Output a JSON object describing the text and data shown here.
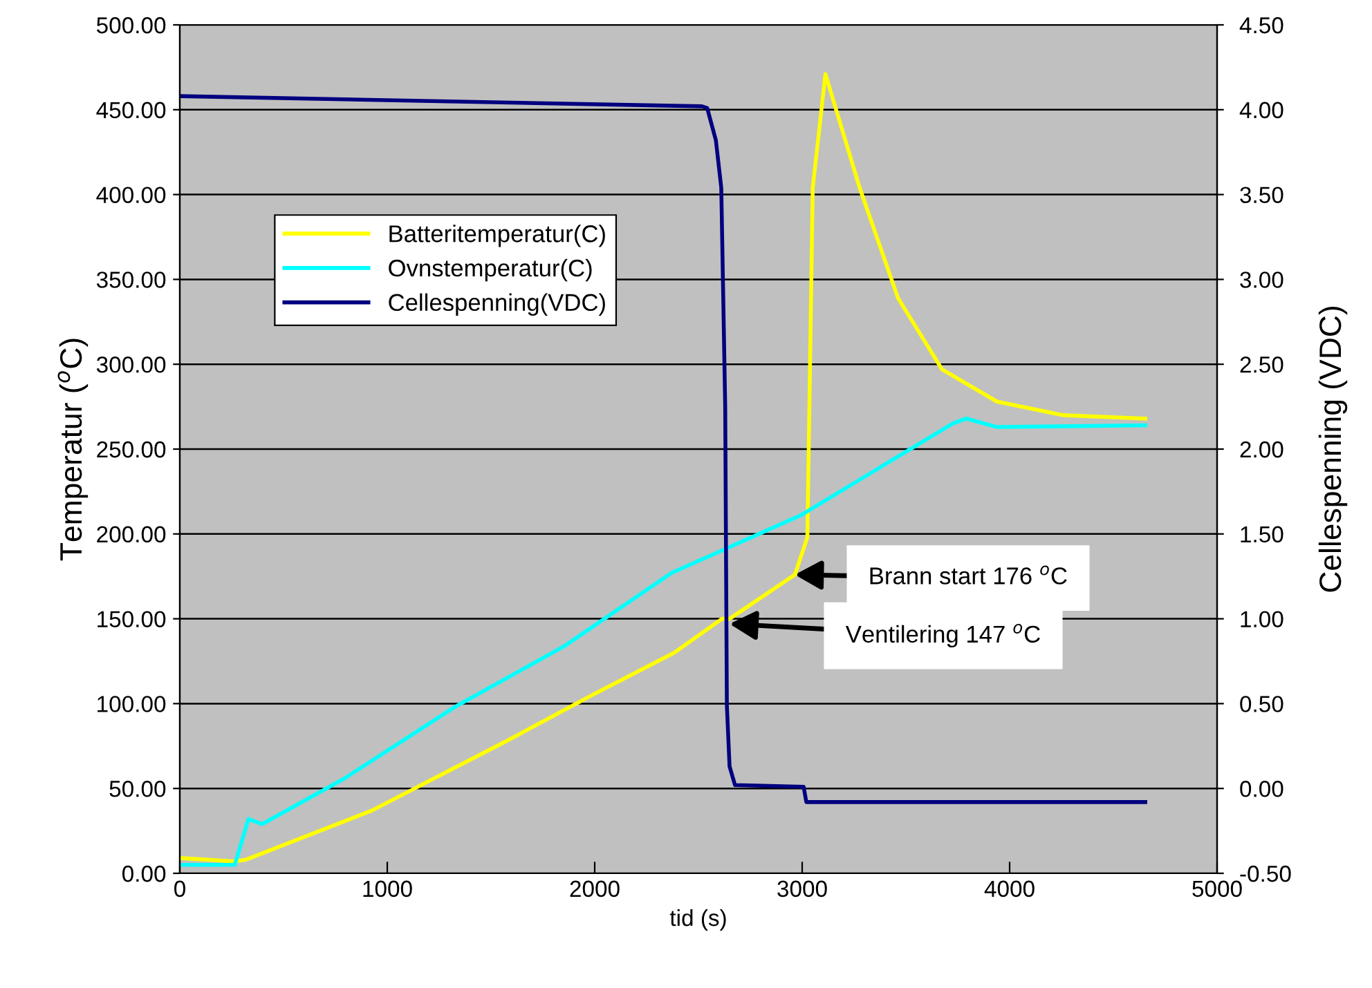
{
  "chart_data": {
    "type": "line",
    "xlabel": "tid (s)",
    "ylabel": "Temperatur ($^{o}$C)",
    "y2label": "Cellespenning (VDC)",
    "xlim": [
      0,
      5000
    ],
    "xticks": [
      0,
      1000,
      2000,
      3000,
      4000,
      5000
    ],
    "ylim": [
      0,
      500
    ],
    "yticks": [
      {
        "value": 0,
        "label": "0.00"
      },
      {
        "value": 50,
        "label": "50.00"
      },
      {
        "value": 100,
        "label": "100.00"
      },
      {
        "value": 150,
        "label": "150.00"
      },
      {
        "value": 200,
        "label": "200.00"
      },
      {
        "value": 250,
        "label": "250.00"
      },
      {
        "value": 300,
        "label": "300.00"
      },
      {
        "value": 350,
        "label": "350.00"
      },
      {
        "value": 400,
        "label": "400.00"
      },
      {
        "value": 450,
        "label": "450.00"
      },
      {
        "value": 500,
        "label": "500.00"
      }
    ],
    "y2lim": [
      -0.5,
      4.5
    ],
    "y2ticks": [
      {
        "value": -0.5,
        "label": "-0.50"
      },
      {
        "value": 0,
        "label": "0.00"
      },
      {
        "value": 0.5,
        "label": "0.50"
      },
      {
        "value": 1,
        "label": "1.00"
      },
      {
        "value": 1.5,
        "label": "1.50"
      },
      {
        "value": 2,
        "label": "2.00"
      },
      {
        "value": 2.5,
        "label": "2.50"
      },
      {
        "value": 3,
        "label": "3.00"
      },
      {
        "value": 3.5,
        "label": "3.50"
      },
      {
        "value": 4,
        "label": "4.00"
      },
      {
        "value": 4.5,
        "label": "4.50"
      }
    ],
    "grid": "y",
    "legend": "top left",
    "marker": "none",
    "line_style": "solid",
    "series": [
      {
        "name": "Batteritemperatur(C)",
        "color": "#ffff00",
        "x": [
          0,
          265,
          318,
          926,
          1591,
          1987,
          2383,
          2614,
          2650,
          2965,
          3025,
          3051,
          3112,
          3277,
          3462,
          3674,
          3939,
          4256,
          4654
        ],
        "values": [
          9,
          7,
          8,
          37,
          79,
          105,
          130,
          150,
          150,
          176,
          198,
          404,
          471,
          404,
          339,
          297,
          278,
          270,
          268
        ]
      },
      {
        "name": "Ovnstemperatur(C)",
        "color": "#00ffff",
        "x": [
          0,
          265,
          331,
          397,
          795,
          1325,
          1855,
          2370,
          2993,
          3725,
          3790,
          3939,
          4654
        ],
        "values": [
          5,
          5,
          32,
          29,
          56,
          98,
          134,
          177,
          211,
          265,
          268,
          263,
          264
        ]
      },
      {
        "name": "Cellespenning(VDC)",
        "color": "#000080",
        "axis": "y2",
        "x": [
          0,
          2517,
          2542,
          2584,
          2610,
          2629,
          2637,
          2650,
          2676,
          3007,
          3020,
          4654
        ],
        "values": [
          4.08,
          4.02,
          4.01,
          3.82,
          3.54,
          2.25,
          0.49,
          0.13,
          0.02,
          0.01,
          -0.08,
          -0.08
        ]
      }
    ],
    "annotations": [
      {
        "text": "Brann start 176 $^{o}$C",
        "x": 2965,
        "y": 176
      },
      {
        "text": "Ventilering 147 $^{o}$C",
        "x": 2650,
        "y": 147
      }
    ]
  }
}
